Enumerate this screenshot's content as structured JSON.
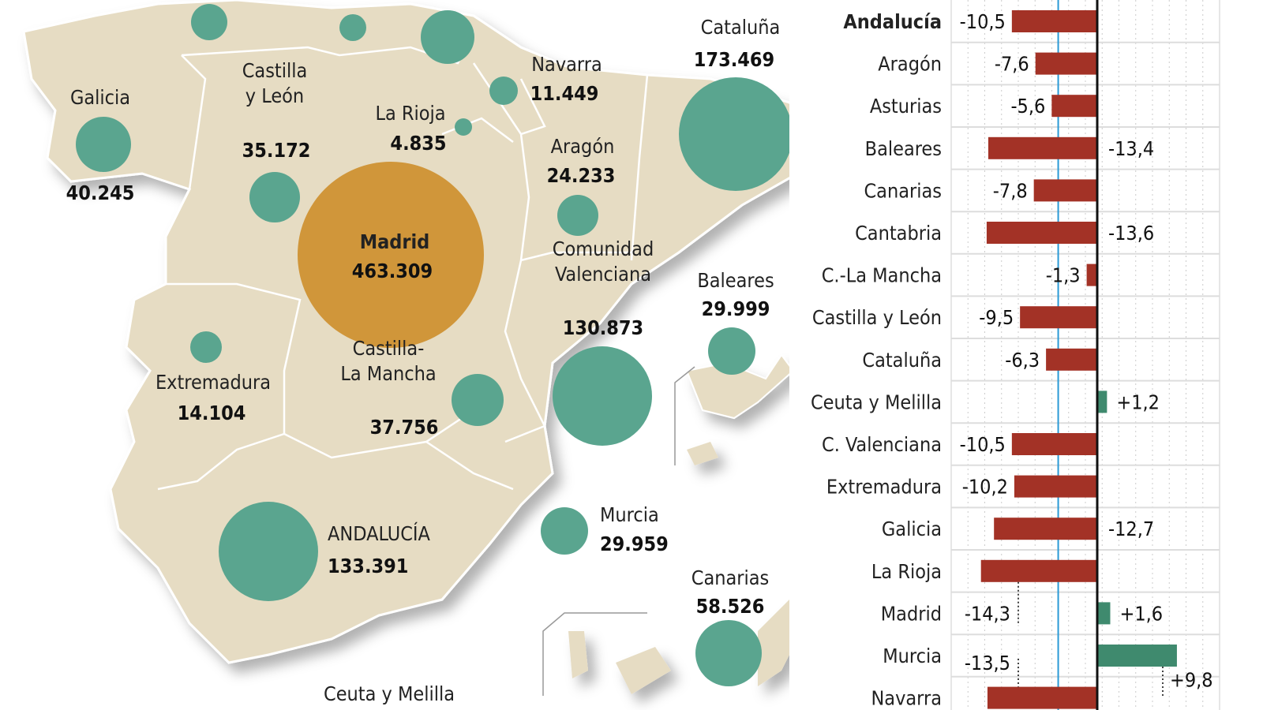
{
  "colors": {
    "map_land": "#e6dcc3",
    "bubble": "#5aa58f",
    "bubble_highlight": "#d0963a",
    "bar_negative": "#a33226",
    "bar_positive": "#3f8a6e",
    "reference_line": "#2a9ad6"
  },
  "map": {
    "regions": [
      {
        "name": "",
        "value": "",
        "id": "asturias"
      },
      {
        "name": "",
        "value": "",
        "id": "cantabria"
      },
      {
        "name": "",
        "value": "",
        "id": "pais-vasco"
      },
      {
        "name": "Navarra",
        "value": "11.449",
        "id": "navarra"
      },
      {
        "name": "La Rioja",
        "value": "4.835",
        "id": "la-rioja"
      },
      {
        "name": "Galicia",
        "value": "40.245",
        "id": "galicia"
      },
      {
        "name": "Castilla|y León",
        "value": "35.172",
        "id": "castilla-leon"
      },
      {
        "name": "Madrid",
        "value": "463.309",
        "id": "madrid"
      },
      {
        "name": "Aragón",
        "value": "24.233",
        "id": "aragon"
      },
      {
        "name": "Cataluña",
        "value": "173.469",
        "id": "cataluna"
      },
      {
        "name": "Baleares",
        "value": "29.999",
        "id": "baleares"
      },
      {
        "name": "Comunidad|Valenciana",
        "value": "130.873",
        "id": "valenciana"
      },
      {
        "name": "Castilla-|La Mancha",
        "value": "37.756",
        "id": "castilla-la-mancha"
      },
      {
        "name": "Extremadura",
        "value": "14.104",
        "id": "extremadura"
      },
      {
        "name": "ANDALUCÍA",
        "value": "133.391",
        "id": "andalucia"
      },
      {
        "name": "Murcia",
        "value": "29.959",
        "id": "murcia"
      },
      {
        "name": "Canarias",
        "value": "58.526",
        "id": "canarias"
      },
      {
        "name": "Ceuta y Melilla",
        "value": "",
        "id": "ceuta-melilla"
      }
    ]
  },
  "chart_data": {
    "type": "bar",
    "orientation": "horizontal",
    "categories": [
      "Andalucía",
      "Aragón",
      "Asturias",
      "Baleares",
      "Canarias",
      "Cantabria",
      "C.-La Mancha",
      "Castilla y León",
      "Cataluña",
      "Ceuta y Melilla",
      "C. Valenciana",
      "Extremadura",
      "Galicia",
      "La Rioja",
      "Madrid",
      "Murcia",
      "Navarra"
    ],
    "values": [
      -10.5,
      -7.6,
      -5.6,
      -13.4,
      -7.8,
      -13.6,
      -1.3,
      -9.5,
      -6.3,
      1.2,
      -10.5,
      -10.2,
      -12.7,
      -14.3,
      1.6,
      9.8,
      -13.5
    ],
    "labels": [
      "-10,5",
      "-7,6",
      "-5,6",
      "-13,4",
      "-7,8",
      "-13,6",
      "-1,3",
      "-9,5",
      "-6,3",
      "+1,2",
      "-10,5",
      "-10,2",
      "-12,7",
      "-14,3",
      "+1,6",
      "+9,8",
      "-13,5"
    ],
    "reference_value": -4.8,
    "grid": true
  }
}
